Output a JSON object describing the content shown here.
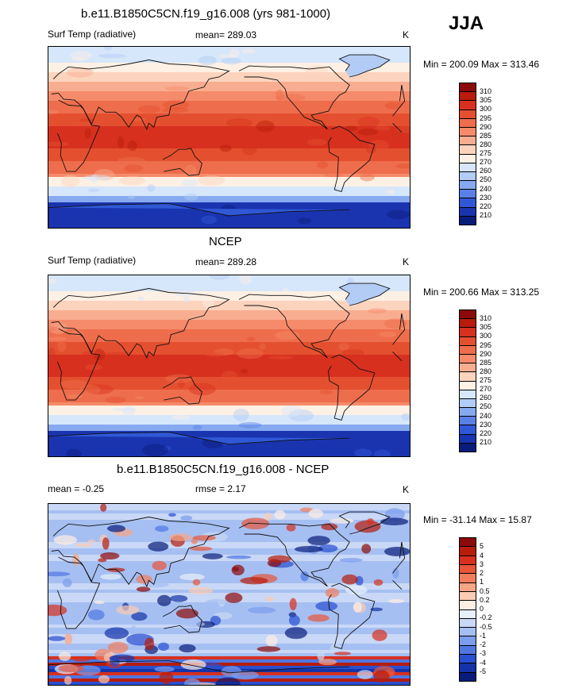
{
  "season": "JJA",
  "panels": [
    {
      "title": "b.e11.B1850C5CN.f19_g16.008 (yrs 981-1000)",
      "left_label": "Surf Temp (radiative)",
      "center_label": "mean= 289.03",
      "units": "K",
      "minmax": "Min = 200.09 Max = 313.46",
      "levels": [
        "310",
        "305",
        "300",
        "295",
        "290",
        "285",
        "280",
        "275",
        "270",
        "260",
        "250",
        "240",
        "230",
        "220",
        "210"
      ]
    },
    {
      "title": "NCEP",
      "left_label": "Surf Temp (radiative)",
      "center_label": "mean= 289.28",
      "units": "K",
      "minmax": "Min = 200.66 Max = 313.25",
      "levels": [
        "310",
        "305",
        "300",
        "295",
        "290",
        "285",
        "280",
        "275",
        "270",
        "260",
        "250",
        "240",
        "230",
        "220",
        "210"
      ]
    },
    {
      "title": "b.e11.B1850C5CN.f19_g16.008 - NCEP",
      "left_label": "mean =  -0.25",
      "center_label": "rmse =   2.17",
      "units": "K",
      "minmax": "Min = -31.14 Max =  15.87",
      "levels": [
        "5",
        "4",
        "3",
        "2",
        "1",
        "0.5",
        "0.2",
        "0",
        "-0.2",
        "-0.5",
        "-1",
        "-2",
        "-3",
        "-4",
        "-5"
      ]
    }
  ],
  "colors": {
    "abs_scale": [
      "#8b0a0a",
      "#b71c0c",
      "#d7301f",
      "#e4502f",
      "#ee6d4c",
      "#f58b6a",
      "#f9ad90",
      "#fcd3bd",
      "#fdf0e4",
      "#d6e6fb",
      "#b2ccf5",
      "#86a9ef",
      "#5a80e6",
      "#3058d6",
      "#1a34b0",
      "#0a1c7a"
    ],
    "diff_scale": [
      "#8b0a0a",
      "#b71c0c",
      "#d7301f",
      "#e8553a",
      "#f27d5d",
      "#f8a585",
      "#fbcbb3",
      "#fdeee4",
      "#e7effb",
      "#c8d8f6",
      "#a6bff2",
      "#7c9ded",
      "#5076e2",
      "#2a4fd0",
      "#1433a8",
      "#0a1c7a"
    ]
  }
}
